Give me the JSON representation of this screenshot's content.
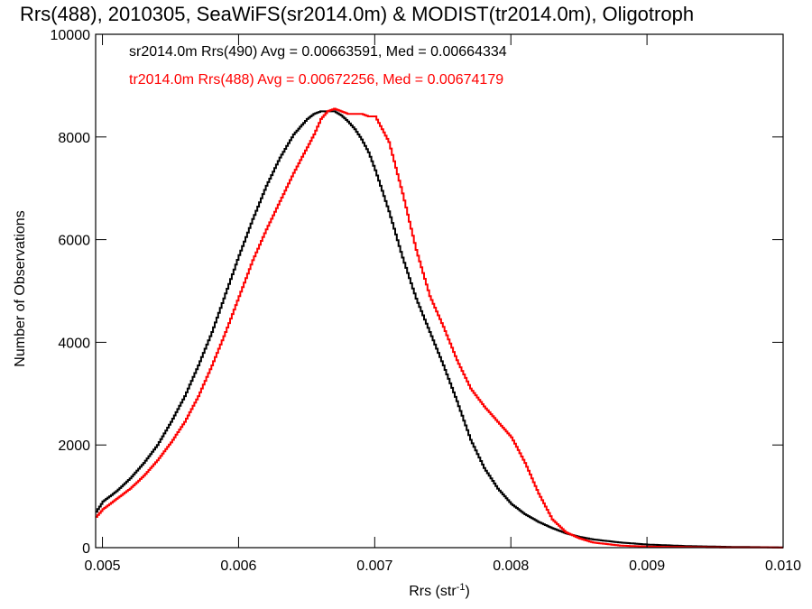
{
  "chart_data": {
    "type": "line",
    "title": "Rrs(488), 2010305, SeaWiFS(sr2014.0m) & MODIST(tr2014.0m), Oligotroph",
    "xlabel": "Rrs (str",
    "xlabel_sup": "-1",
    "xlabel_close": ")",
    "ylabel": "Number of Observations",
    "xlim": [
      0.00495,
      0.01
    ],
    "ylim": [
      0,
      10000
    ],
    "x_ticks": [
      0.005,
      0.006,
      0.007,
      0.008,
      0.009,
      0.01
    ],
    "x_tick_labels": [
      "0.005",
      "0.006",
      "0.007",
      "0.008",
      "0.009",
      "0.010"
    ],
    "y_ticks": [
      0,
      2000,
      4000,
      6000,
      8000,
      10000
    ],
    "y_tick_labels": [
      "0",
      "2000",
      "4000",
      "6000",
      "8000",
      "10000"
    ],
    "grid": false,
    "legend_position": "top-left",
    "series": [
      {
        "name": "sr2014.0m Rrs(490) Avg = 0.00663591, Med = 0.00664334",
        "color": "#000000",
        "x": [
          0.00495,
          0.005,
          0.0051,
          0.0052,
          0.0053,
          0.0054,
          0.0055,
          0.0056,
          0.0057,
          0.0058,
          0.0059,
          0.006,
          0.0061,
          0.0062,
          0.0063,
          0.0064,
          0.0065,
          0.00655,
          0.0066,
          0.00665,
          0.0067,
          0.00675,
          0.0068,
          0.00685,
          0.0069,
          0.00695,
          0.007,
          0.0071,
          0.0072,
          0.0073,
          0.0074,
          0.0075,
          0.0076,
          0.0077,
          0.0078,
          0.0079,
          0.008,
          0.0081,
          0.0082,
          0.0083,
          0.0084,
          0.0085,
          0.0086,
          0.0088,
          0.009,
          0.0093,
          0.0096,
          0.01
        ],
        "y": [
          700,
          900,
          1100,
          1350,
          1650,
          2000,
          2450,
          2950,
          3550,
          4200,
          4950,
          5700,
          6400,
          7050,
          7600,
          8050,
          8350,
          8450,
          8500,
          8500,
          8500,
          8420,
          8300,
          8150,
          7950,
          7700,
          7350,
          6550,
          5650,
          4850,
          4200,
          3550,
          2850,
          2100,
          1550,
          1150,
          850,
          650,
          500,
          380,
          280,
          210,
          160,
          100,
          60,
          30,
          15,
          5
        ]
      },
      {
        "name": "tr2014.0m Rrs(488) Avg = 0.00672256, Med = 0.00674179",
        "color": "#ff0000",
        "x": [
          0.00495,
          0.005,
          0.0051,
          0.0052,
          0.0053,
          0.0054,
          0.0055,
          0.0056,
          0.0057,
          0.0058,
          0.0059,
          0.006,
          0.0061,
          0.0062,
          0.0063,
          0.0064,
          0.0065,
          0.00655,
          0.0066,
          0.00665,
          0.0067,
          0.00675,
          0.0068,
          0.00685,
          0.0069,
          0.00695,
          0.007,
          0.0071,
          0.0072,
          0.0073,
          0.0074,
          0.0075,
          0.0076,
          0.0077,
          0.0078,
          0.0079,
          0.008,
          0.0081,
          0.0082,
          0.0083,
          0.0084,
          0.0085,
          0.0086,
          0.0088,
          0.009,
          0.0093,
          0.0096,
          0.01
        ],
        "y": [
          600,
          750,
          950,
          1150,
          1400,
          1700,
          2050,
          2450,
          2950,
          3550,
          4200,
          4900,
          5600,
          6200,
          6750,
          7300,
          7800,
          8050,
          8350,
          8500,
          8550,
          8500,
          8450,
          8450,
          8450,
          8400,
          8400,
          7900,
          6900,
          5800,
          4900,
          4300,
          3650,
          3100,
          2750,
          2450,
          2150,
          1650,
          1050,
          550,
          300,
          180,
          100,
          40,
          20,
          10,
          5,
          2
        ]
      }
    ]
  }
}
